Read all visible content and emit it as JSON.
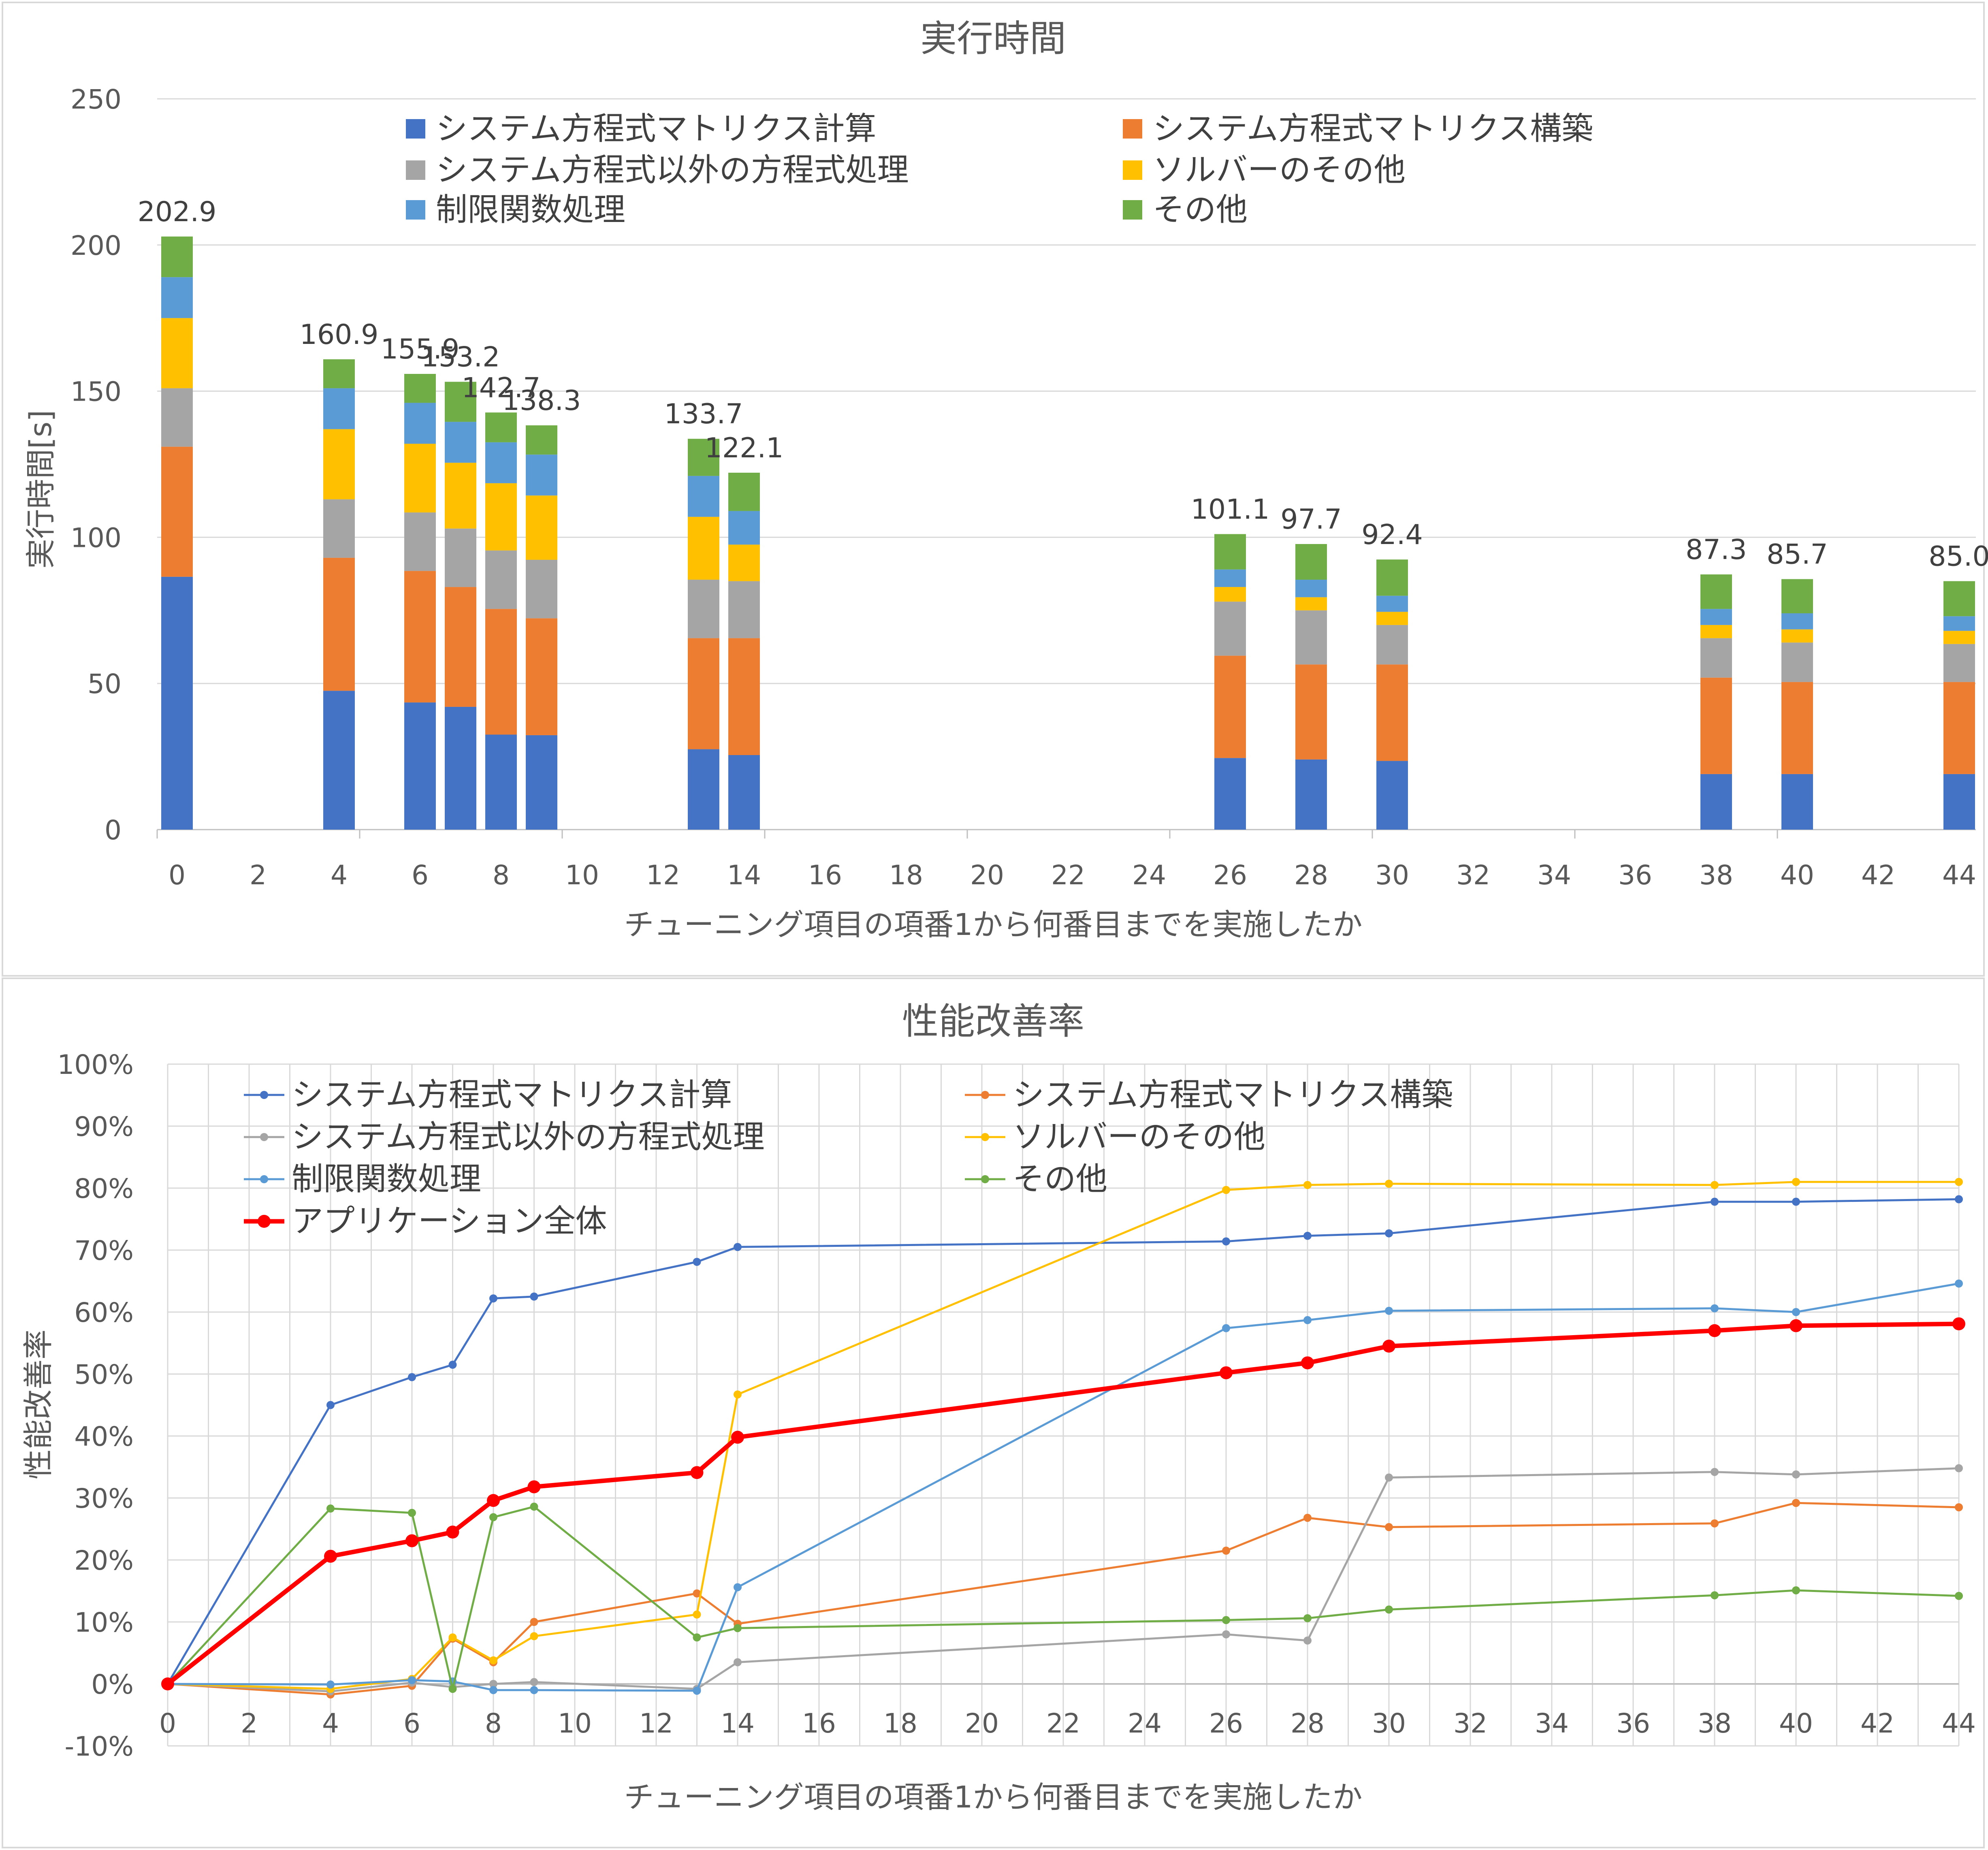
{
  "colors": {
    "matrix_calc": "#4472C4",
    "matrix_build": "#ED7D31",
    "other_eq": "#A5A5A5",
    "solver_other": "#FFC000",
    "constraint": "#5B9BD5",
    "other": "#70AD47",
    "application": "#FF0000",
    "grid": "#d9d9d9",
    "text": "#595959"
  },
  "chart_data": [
    {
      "type": "bar",
      "stacked": true,
      "title": "実行時間",
      "xlabel": "チューニング項目の項番1から何番目までを実施したか",
      "ylabel": "実行時間[s]",
      "ylim": [
        0,
        250
      ],
      "yticks": [
        "0",
        "50",
        "100",
        "150",
        "200",
        "250"
      ],
      "xticks": [
        "0",
        "2",
        "4",
        "6",
        "8",
        "10",
        "12",
        "14",
        "16",
        "18",
        "20",
        "22",
        "24",
        "26",
        "28",
        "30",
        "32",
        "34",
        "36",
        "38",
        "40",
        "42",
        "44"
      ],
      "grid": "horizontal",
      "legend_position": "top",
      "x": [
        0,
        4,
        6,
        7,
        8,
        9,
        13,
        14,
        26,
        28,
        30,
        38,
        40,
        44
      ],
      "series": [
        {
          "name": "システム方程式マトリクス計算",
          "color_key": "matrix_calc",
          "values": [
            86.5,
            47.5,
            43.5,
            42.0,
            32.5,
            32.3,
            27.5,
            25.5,
            24.5,
            24.0,
            23.5,
            19.0,
            19.0,
            19.0
          ]
        },
        {
          "name": "システム方程式マトリクス構築",
          "color_key": "matrix_build",
          "values": [
            44.5,
            45.5,
            45.0,
            41.0,
            43.0,
            40.0,
            38.0,
            40.0,
            35.0,
            32.5,
            33.0,
            33.0,
            31.5,
            31.5
          ]
        },
        {
          "name": "システム方程式以外の方程式処理",
          "color_key": "other_eq",
          "values": [
            20.0,
            20.0,
            20.0,
            20.0,
            20.0,
            20.0,
            20.0,
            19.5,
            18.5,
            18.5,
            13.5,
            13.5,
            13.5,
            13.0
          ]
        },
        {
          "name": "ソルバーのその他",
          "color_key": "solver_other",
          "values": [
            24.0,
            24.0,
            23.5,
            22.5,
            23.0,
            22.0,
            21.5,
            12.5,
            5.0,
            4.5,
            4.5,
            4.5,
            4.5,
            4.5
          ]
        },
        {
          "name": "制限関数処理",
          "color_key": "constraint",
          "values": [
            14.0,
            14.0,
            14.0,
            14.0,
            14.0,
            14.0,
            14.0,
            11.5,
            6.0,
            6.0,
            5.5,
            5.5,
            5.5,
            5.0
          ]
        },
        {
          "name": "その他",
          "color_key": "other",
          "values": [
            13.9,
            9.9,
            9.9,
            13.7,
            10.2,
            10.0,
            12.7,
            13.1,
            12.1,
            12.2,
            12.4,
            11.8,
            11.7,
            12.0
          ]
        }
      ],
      "totals": [
        202.9,
        160.9,
        155.9,
        153.2,
        142.7,
        138.3,
        133.7,
        122.1,
        101.1,
        97.7,
        92.4,
        87.3,
        85.7,
        85.0
      ],
      "total_labels": [
        "202.9",
        "160.9",
        "155.9",
        "153.2",
        "142.7",
        "138.3",
        "133.7",
        "122.1",
        "101.1",
        "97.7",
        "92.4",
        "87.3",
        "85.7",
        "85.0"
      ]
    },
    {
      "type": "line",
      "title": "性能改善率",
      "xlabel": "チューニング項目の項番1から何番目までを実施したか",
      "ylabel": "性能改善率",
      "ylim": [
        -10,
        100
      ],
      "yticks": [
        "-10%",
        "0%",
        "10%",
        "20%",
        "30%",
        "40%",
        "50%",
        "60%",
        "70%",
        "80%",
        "90%",
        "100%"
      ],
      "xticks": [
        "0",
        "2",
        "4",
        "6",
        "8",
        "10",
        "12",
        "14",
        "16",
        "18",
        "20",
        "22",
        "24",
        "26",
        "28",
        "30",
        "32",
        "34",
        "36",
        "38",
        "40",
        "42",
        "44"
      ],
      "xlim": [
        0,
        44
      ],
      "grid": "both",
      "legend_position": "top-left",
      "x": [
        0,
        4,
        6,
        7,
        8,
        9,
        13,
        14,
        26,
        28,
        30,
        38,
        40,
        44
      ],
      "series": [
        {
          "name": "システム方程式マトリクス計算",
          "color_key": "matrix_calc",
          "values": [
            0,
            45,
            49.5,
            51.5,
            62.2,
            62.5,
            68.1,
            70.5,
            71.4,
            72.3,
            72.7,
            77.8,
            77.8,
            78.2
          ]
        },
        {
          "name": "システム方程式マトリクス構築",
          "color_key": "matrix_build",
          "values": [
            0,
            -1.7,
            -0.3,
            7.3,
            3.5,
            10,
            14.6,
            9.7,
            21.5,
            26.8,
            25.3,
            25.9,
            29.2,
            28.5
          ]
        },
        {
          "name": "システム方程式以外の方程式処理",
          "color_key": "other_eq",
          "values": [
            0,
            -1.2,
            0.2,
            -0.5,
            0,
            0.3,
            -0.8,
            3.5,
            8,
            7,
            33.3,
            34.2,
            33.8,
            34.8
          ]
        },
        {
          "name": "ソルバーのその他",
          "color_key": "solver_other",
          "values": [
            0,
            -0.8,
            0.8,
            7.5,
            3.8,
            7.7,
            11.2,
            46.7,
            79.7,
            80.5,
            80.7,
            80.5,
            81,
            81
          ]
        },
        {
          "name": "制限関数処理",
          "color_key": "constraint",
          "values": [
            0,
            -0.1,
            0.6,
            0.4,
            -1,
            -1,
            -1.1,
            15.6,
            57.4,
            58.7,
            60.2,
            60.6,
            60,
            64.6
          ]
        },
        {
          "name": "その他",
          "color_key": "other",
          "values": [
            0,
            28.3,
            27.6,
            -0.8,
            26.9,
            28.6,
            7.5,
            9,
            10.3,
            10.6,
            12,
            14.3,
            15.1,
            14.2
          ]
        },
        {
          "name": "アプリケーション全体",
          "color_key": "application",
          "bold": true,
          "values": [
            0,
            20.6,
            23.1,
            24.5,
            29.6,
            31.8,
            34.1,
            39.8,
            50.2,
            51.8,
            54.5,
            57,
            57.8,
            58.1
          ]
        }
      ]
    }
  ]
}
